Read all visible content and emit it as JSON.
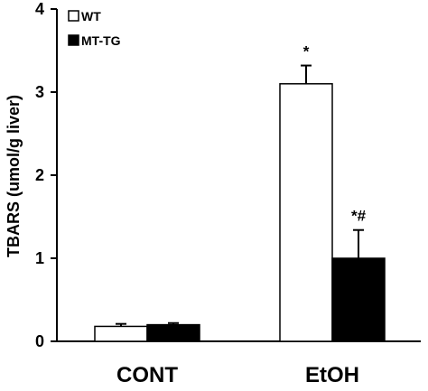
{
  "chart_data": {
    "type": "bar",
    "categories": [
      "CONT",
      "EtOH"
    ],
    "series": [
      {
        "name": "WT",
        "values": [
          0.18,
          3.1
        ],
        "errors": [
          0.03,
          0.22
        ],
        "fill": "#ffffff",
        "stroke": "#000000"
      },
      {
        "name": "MT-TG",
        "values": [
          0.2,
          1.0
        ],
        "errors": [
          0.02,
          0.34
        ],
        "fill": "#000000",
        "stroke": "#000000"
      }
    ],
    "annotations": [
      {
        "series": 0,
        "category": 1,
        "text": "*"
      },
      {
        "series": 1,
        "category": 1,
        "text": "*#"
      }
    ],
    "ylabel": "TBARS (umol/g liver)",
    "xlabel": "",
    "title": "",
    "ylim": [
      0,
      4
    ],
    "yticks": [
      "0",
      "1",
      "2",
      "3",
      "4"
    ],
    "legend_position": "top-left",
    "grid": false
  }
}
